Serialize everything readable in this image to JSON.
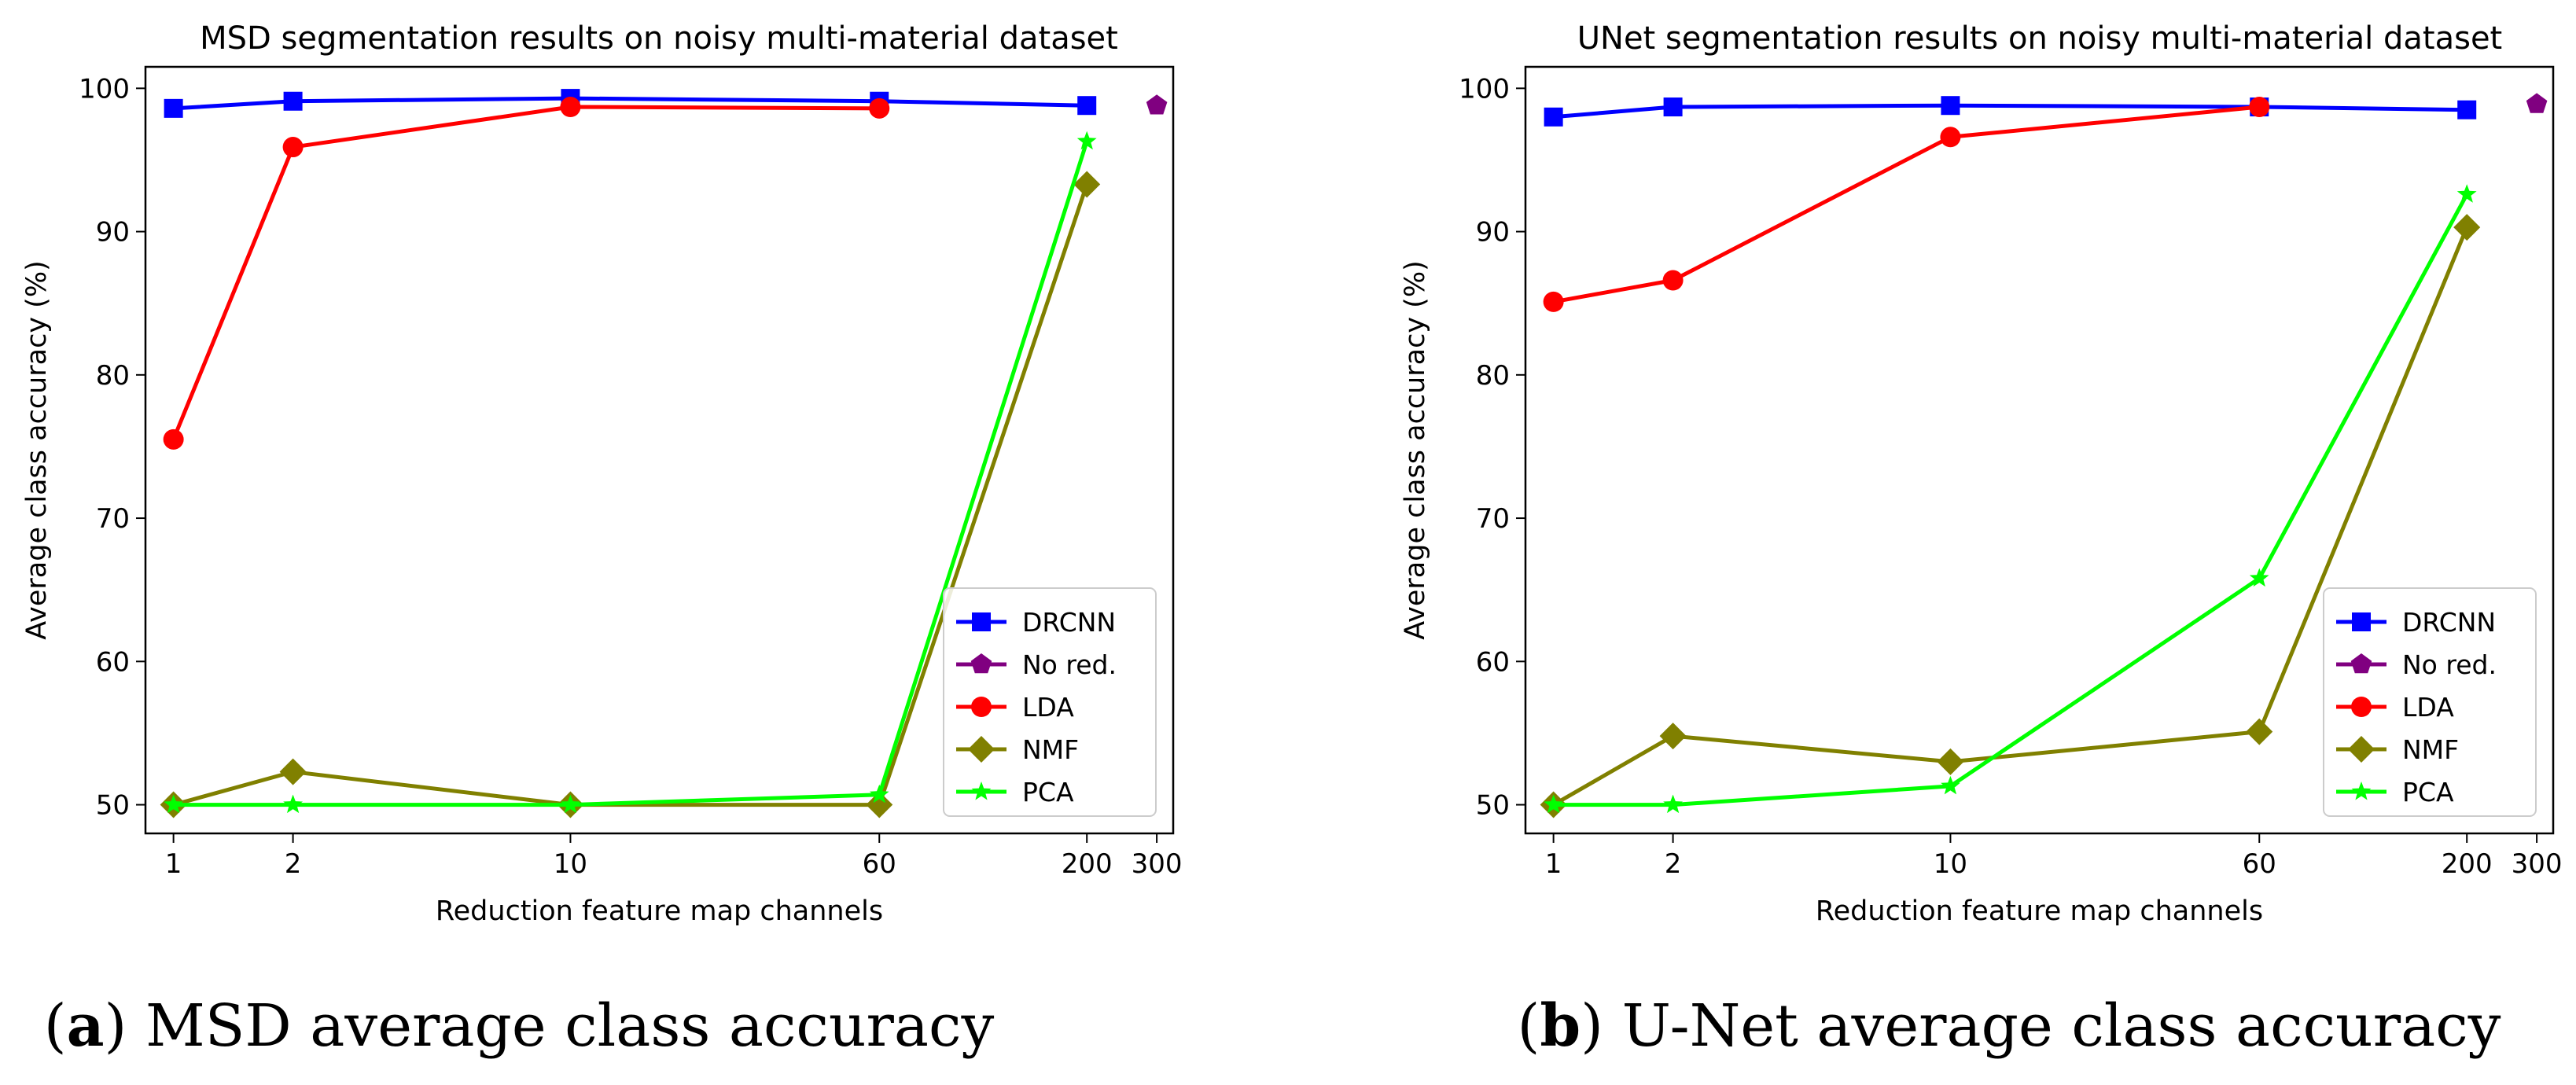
{
  "chart_data": [
    {
      "type": "line",
      "title": "MSD segmentation results on noisy multi-material dataset",
      "xlabel": "Reduction feature map channels",
      "ylabel": "Average class accuracy (%)",
      "x_scale": "log",
      "x_ticks": [
        1,
        2,
        10,
        60,
        200,
        300
      ],
      "x_tick_labels": [
        "1",
        "2",
        "10",
        "60",
        "200",
        "300"
      ],
      "y_ticks": [
        50,
        60,
        70,
        80,
        90,
        100
      ],
      "y_tick_labels": [
        "50",
        "60",
        "70",
        "80",
        "90",
        "100"
      ],
      "ylim": [
        48.0,
        101.5
      ],
      "legend_position": "lower-right",
      "series": [
        {
          "name": "DRCNN",
          "color": "#0000ff",
          "marker": "square",
          "x": [
            1,
            2,
            10,
            60,
            200
          ],
          "values": [
            98.6,
            99.1,
            99.3,
            99.1,
            98.8
          ]
        },
        {
          "name": "No red.",
          "color": "#800080",
          "marker": "pentagon",
          "x": [
            300
          ],
          "values": [
            98.8
          ]
        },
        {
          "name": "LDA",
          "color": "#ff0000",
          "marker": "circle",
          "x": [
            1,
            2,
            10,
            60
          ],
          "values": [
            75.5,
            95.9,
            98.7,
            98.6
          ]
        },
        {
          "name": "NMF",
          "color": "#808000",
          "marker": "diamond",
          "x": [
            1,
            2,
            10,
            60,
            200
          ],
          "values": [
            50.0,
            52.3,
            50.0,
            50.0,
            93.3
          ]
        },
        {
          "name": "PCA",
          "color": "#00ff00",
          "marker": "star",
          "x": [
            1,
            2,
            10,
            60,
            200
          ],
          "values": [
            50.0,
            50.0,
            50.0,
            50.7,
            96.3
          ]
        }
      ]
    },
    {
      "type": "line",
      "title": "UNet segmentation results on noisy multi-material dataset",
      "xlabel": "Reduction feature map channels",
      "ylabel": "Average class accuracy (%)",
      "x_scale": "log",
      "x_ticks": [
        1,
        2,
        10,
        60,
        200,
        300
      ],
      "x_tick_labels": [
        "1",
        "2",
        "10",
        "60",
        "200",
        "300"
      ],
      "y_ticks": [
        50,
        60,
        70,
        80,
        90,
        100
      ],
      "y_tick_labels": [
        "50",
        "60",
        "70",
        "80",
        "90",
        "100"
      ],
      "ylim": [
        48.0,
        101.5
      ],
      "legend_position": "lower-right",
      "series": [
        {
          "name": "DRCNN",
          "color": "#0000ff",
          "marker": "square",
          "x": [
            1,
            2,
            10,
            60,
            200
          ],
          "values": [
            98.0,
            98.7,
            98.8,
            98.7,
            98.5
          ]
        },
        {
          "name": "No red.",
          "color": "#800080",
          "marker": "pentagon",
          "x": [
            300
          ],
          "values": [
            98.9
          ]
        },
        {
          "name": "LDA",
          "color": "#ff0000",
          "marker": "circle",
          "x": [
            1,
            2,
            10,
            60
          ],
          "values": [
            85.1,
            86.6,
            96.6,
            98.7
          ]
        },
        {
          "name": "NMF",
          "color": "#808000",
          "marker": "diamond",
          "x": [
            1,
            2,
            10,
            60,
            200
          ],
          "values": [
            50.0,
            54.8,
            53.0,
            55.1,
            90.3
          ]
        },
        {
          "name": "PCA",
          "color": "#00ff00",
          "marker": "star",
          "x": [
            1,
            2,
            10,
            60,
            200
          ],
          "values": [
            50.0,
            50.0,
            51.3,
            65.8,
            92.6
          ]
        }
      ]
    }
  ],
  "captions": [
    {
      "letter": "a",
      "text": "MSD average class accuracy"
    },
    {
      "letter": "b",
      "text": "U-Net average class accuracy"
    }
  ]
}
